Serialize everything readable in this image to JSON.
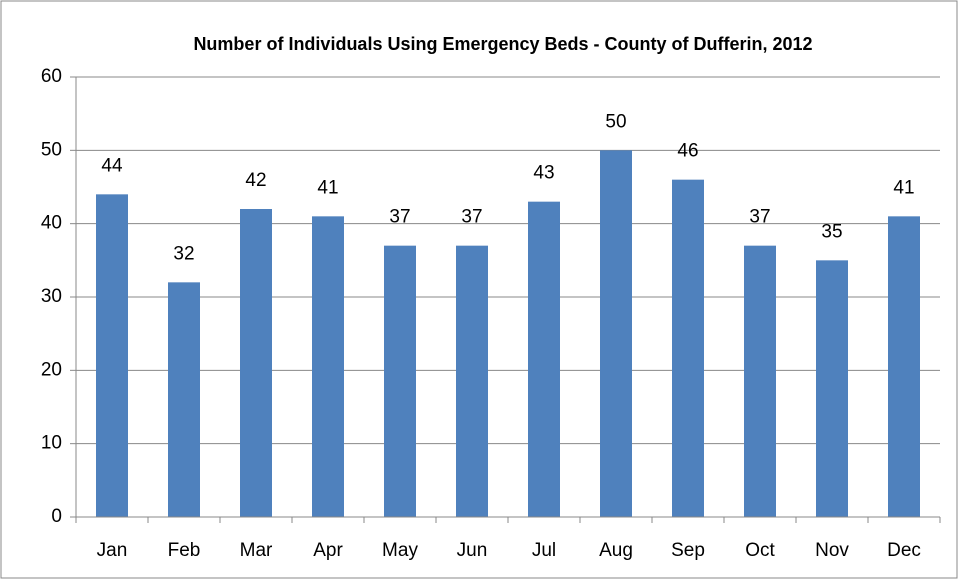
{
  "chart_data": {
    "type": "bar",
    "title": "Number of Individuals Using Emergency Beds - County of Dufferin, 2012",
    "categories": [
      "Jan",
      "Feb",
      "Mar",
      "Apr",
      "May",
      "Jun",
      "Jul",
      "Aug",
      "Sep",
      "Oct",
      "Nov",
      "Dec"
    ],
    "values": [
      44,
      32,
      42,
      41,
      37,
      37,
      43,
      50,
      46,
      37,
      35,
      41
    ],
    "color": "#4f81bd",
    "ylim": [
      0,
      60
    ],
    "yticks": [
      0,
      10,
      20,
      30,
      40,
      50,
      60
    ],
    "grid": true
  }
}
